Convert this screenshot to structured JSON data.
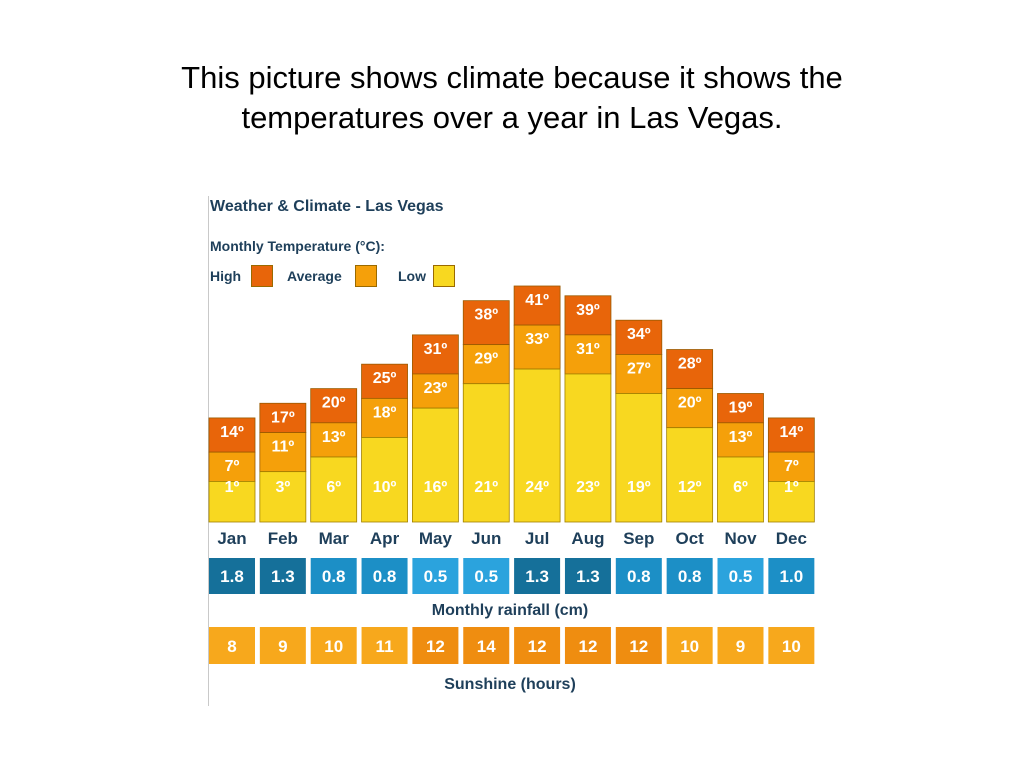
{
  "slide": {
    "title_lines": [
      "This picture shows climate because it shows the",
      "temperatures over a year in Las Vegas."
    ]
  },
  "chart_data": {
    "type": "bar",
    "title": "Weather & Climate - Las Vegas",
    "subtitle": "Monthly Temperature (°C):",
    "categories": [
      "Jan",
      "Feb",
      "Mar",
      "Apr",
      "May",
      "Jun",
      "Jul",
      "Aug",
      "Sep",
      "Oct",
      "Nov",
      "Dec"
    ],
    "legend": [
      {
        "name": "High",
        "color": "#e8650a"
      },
      {
        "name": "Average",
        "color": "#f5a00a"
      },
      {
        "name": "Low",
        "color": "#f8d820"
      }
    ],
    "series": [
      {
        "name": "High",
        "values": [
          14,
          17,
          20,
          25,
          31,
          38,
          41,
          39,
          34,
          28,
          19,
          14
        ]
      },
      {
        "name": "Average",
        "values": [
          7,
          11,
          13,
          18,
          23,
          29,
          33,
          31,
          27,
          20,
          13,
          7
        ]
      },
      {
        "name": "Low",
        "values": [
          1,
          3,
          6,
          10,
          16,
          21,
          24,
          23,
          19,
          12,
          6,
          1
        ]
      }
    ],
    "degree_suffix": "º",
    "rainfall": {
      "label": "Monthly rainfall (cm)",
      "values": [
        "1.8",
        "1.3",
        "0.8",
        "0.8",
        "0.5",
        "0.5",
        "1.3",
        "1.3",
        "0.8",
        "0.8",
        "0.5",
        "1.0"
      ]
    },
    "sunshine": {
      "label": "Sunshine (hours)",
      "values": [
        8,
        9,
        10,
        11,
        12,
        14,
        12,
        12,
        12,
        10,
        9,
        10
      ]
    },
    "colors": {
      "high": "#e8650a",
      "average": "#f5a00a",
      "low": "#f8d820",
      "label_text": "#1e3f5a",
      "rain_dark": "#15709a",
      "rain_mid": "#1c8fc6",
      "rain_light": "#2ba3dd",
      "sun_light": "#f7a81c",
      "sun_dark": "#ef8d10"
    }
  }
}
